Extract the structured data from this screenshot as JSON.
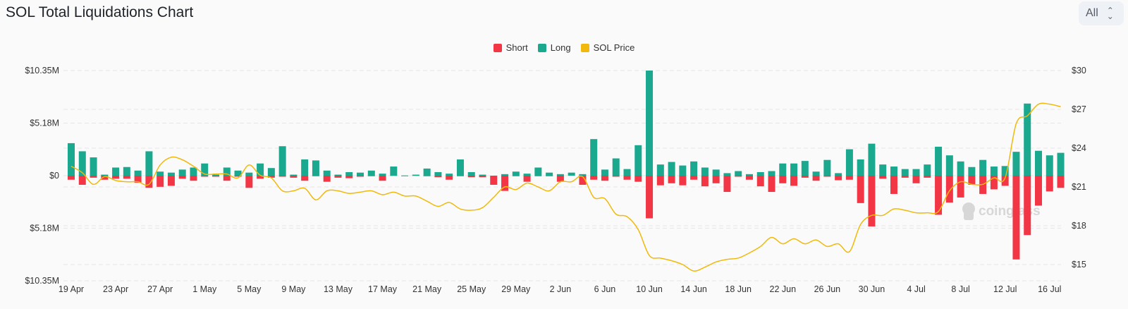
{
  "title": "SOL Total Liquidations Chart",
  "range_select": {
    "value": "All"
  },
  "colors": {
    "short": "#f23645",
    "long": "#1aa88f",
    "price": "#f0b90b",
    "grid": "#e6e6e6"
  },
  "watermark": "coinglass",
  "chart_data": {
    "type": "bar+line",
    "title": "SOL Total Liquidations Chart",
    "legend": {
      "placement": "top-center",
      "entries": [
        "Short",
        "Long",
        "SOL Price"
      ]
    },
    "grid": true,
    "left_axis": {
      "ylim_musd": [
        -10.35,
        10.35
      ],
      "tick_labels": [
        "$10.35M",
        "$5.18M",
        "$0",
        "$5.18M",
        "$10.35M"
      ]
    },
    "right_axis": {
      "ylim_usd": [
        15,
        30
      ],
      "tick_labels": [
        "$30",
        "$27",
        "$24",
        "$21",
        "$18",
        "$15"
      ]
    },
    "x_tick_labels": [
      "19 Apr",
      "23 Apr",
      "27 Apr",
      "1 May",
      "5 May",
      "9 May",
      "13 May",
      "17 May",
      "21 May",
      "25 May",
      "29 May",
      "2 Jun",
      "6 Jun",
      "10 Jun",
      "14 Jun",
      "18 Jun",
      "22 Jun",
      "26 Jun",
      "30 Jun",
      "4 Jul",
      "8 Jul",
      "12 Jul",
      "16 Jul"
    ],
    "categories": [
      "19 Apr",
      "20 Apr",
      "21 Apr",
      "22 Apr",
      "23 Apr",
      "24 Apr",
      "25 Apr",
      "26 Apr",
      "27 Apr",
      "28 Apr",
      "29 Apr",
      "30 Apr",
      "1 May",
      "2 May",
      "3 May",
      "4 May",
      "5 May",
      "6 May",
      "7 May",
      "8 May",
      "9 May",
      "10 May",
      "11 May",
      "12 May",
      "13 May",
      "14 May",
      "15 May",
      "16 May",
      "17 May",
      "18 May",
      "19 May",
      "20 May",
      "21 May",
      "22 May",
      "23 May",
      "24 May",
      "25 May",
      "26 May",
      "27 May",
      "28 May",
      "29 May",
      "30 May",
      "31 May",
      "1 Jun",
      "2 Jun",
      "3 Jun",
      "4 Jun",
      "5 Jun",
      "6 Jun",
      "7 Jun",
      "8 Jun",
      "9 Jun",
      "10 Jun",
      "11 Jun",
      "12 Jun",
      "13 Jun",
      "14 Jun",
      "15 Jun",
      "16 Jun",
      "17 Jun",
      "18 Jun",
      "19 Jun",
      "20 Jun",
      "21 Jun",
      "22 Jun",
      "23 Jun",
      "24 Jun",
      "25 Jun",
      "26 Jun",
      "27 Jun",
      "28 Jun",
      "29 Jun",
      "30 Jun",
      "1 Jul",
      "2 Jul",
      "3 Jul",
      "4 Jul",
      "5 Jul",
      "6 Jul",
      "7 Jul",
      "8 Jul",
      "9 Jul",
      "10 Jul",
      "11 Jul",
      "12 Jul",
      "13 Jul",
      "14 Jul",
      "15 Jul",
      "16 Jul",
      "17 Jul"
    ],
    "series": [
      {
        "name": "Short",
        "unit": "M USD",
        "values": [
          0.4,
          0.9,
          0.2,
          0.4,
          0.3,
          0.3,
          0.7,
          1.2,
          1.1,
          1.0,
          0.3,
          0.5,
          0.1,
          0.1,
          0.5,
          0.1,
          1.2,
          0.3,
          0.2,
          0.1,
          0.2,
          0.5,
          0.05,
          0.6,
          0.2,
          0.25,
          0.1,
          0.05,
          0.5,
          0.02,
          0.05,
          0.02,
          0.05,
          0.15,
          0.4,
          0.05,
          0.15,
          0.15,
          0.9,
          1.5,
          0.05,
          0.6,
          0.05,
          0.05,
          0.6,
          0.0,
          0.9,
          0.4,
          0.5,
          0.1,
          0.4,
          0.6,
          4.2,
          0.95,
          0.75,
          0.95,
          0.4,
          1.05,
          0.75,
          1.6,
          0.1,
          0.4,
          1.05,
          1.6,
          0.75,
          1.0,
          0.2,
          0.5,
          0.1,
          0.45,
          0.4,
          2.7,
          5.0,
          0.3,
          1.8,
          0.2,
          0.75,
          0.2,
          3.85,
          2.65,
          2.15,
          0.9,
          1.8,
          1.35,
          1.0,
          8.25,
          5.85,
          2.95,
          1.55,
          1.2
        ]
      },
      {
        "name": "Long",
        "unit": "M USD",
        "values": [
          3.2,
          2.4,
          1.8,
          0.1,
          0.8,
          0.85,
          0.5,
          2.4,
          0.4,
          0.3,
          0.6,
          0.8,
          1.2,
          0.1,
          0.8,
          0.5,
          0.3,
          1.2,
          0.75,
          2.9,
          0.1,
          1.6,
          1.5,
          0.5,
          0.1,
          0.35,
          0.3,
          0.5,
          0.2,
          0.9,
          0.02,
          0.1,
          0.7,
          0.35,
          0.2,
          1.6,
          0.35,
          0.1,
          0.0,
          0.15,
          0.4,
          0.2,
          0.8,
          0.3,
          0.15,
          0.3,
          0.15,
          3.6,
          0.6,
          1.7,
          0.65,
          3.0,
          10.35,
          1.1,
          1.35,
          1.0,
          1.4,
          0.8,
          0.6,
          0.25,
          0.45,
          0.15,
          0.35,
          0.45,
          1.2,
          1.2,
          1.45,
          0.4,
          1.55,
          0.25,
          2.6,
          1.6,
          3.15,
          1.1,
          0.9,
          0.65,
          0.65,
          1.1,
          2.85,
          2.0,
          1.4,
          0.85,
          1.55,
          0.9,
          0.95,
          2.35,
          7.1,
          2.45,
          2.0,
          2.25
        ]
      },
      {
        "name": "SOL Price",
        "unit": "USD",
        "values": [
          22.6,
          22.1,
          21.2,
          21.8,
          21.5,
          21.4,
          21.4,
          21.2,
          22.7,
          23.3,
          23.1,
          22.6,
          22.0,
          22.0,
          22.0,
          21.7,
          22.7,
          21.9,
          21.7,
          20.7,
          20.7,
          20.9,
          20.0,
          20.7,
          20.7,
          20.5,
          20.6,
          20.7,
          20.4,
          20.6,
          20.3,
          20.3,
          19.9,
          19.5,
          19.8,
          19.3,
          19.2,
          19.4,
          20.2,
          21.0,
          20.8,
          21.3,
          21.0,
          20.7,
          21.4,
          21.4,
          21.8,
          20.2,
          20.1,
          18.9,
          18.7,
          17.7,
          15.7,
          15.5,
          15.3,
          15.0,
          14.5,
          14.8,
          15.2,
          15.4,
          15.5,
          15.9,
          16.4,
          17.1,
          16.6,
          17.0,
          16.6,
          16.9,
          16.4,
          16.6,
          16.0,
          18.1,
          18.8,
          18.8,
          19.3,
          19.2,
          19.0,
          19.0,
          19.1,
          20.7,
          21.4,
          21.2,
          21.2,
          21.7,
          21.7,
          25.9,
          26.5,
          27.4,
          27.4,
          27.2
        ]
      }
    ]
  }
}
